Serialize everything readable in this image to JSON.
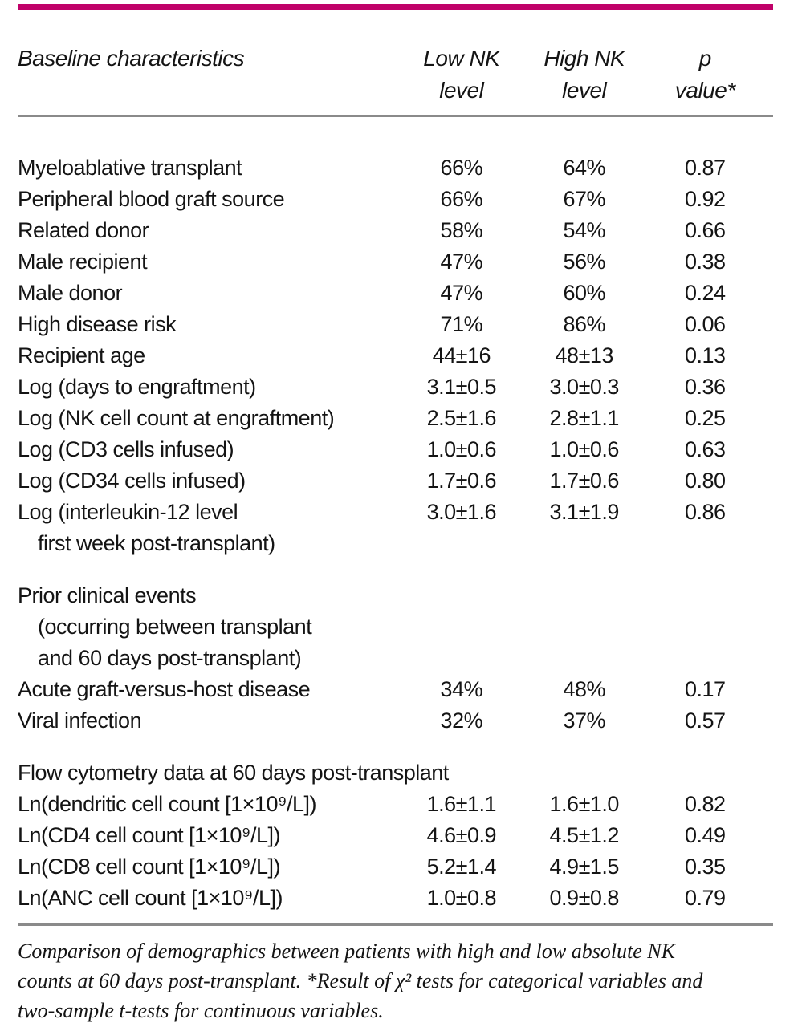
{
  "page": {
    "accent_bar_color": "#C00169",
    "rule_color": "#8a8a8a",
    "text_color": "#141414",
    "background_color": "#ffffff"
  },
  "table": {
    "header": {
      "col1": "Baseline characteristics",
      "col2": [
        "Low NK",
        "level"
      ],
      "col3": [
        "High NK",
        "level"
      ],
      "col4": [
        "p",
        "value*"
      ]
    },
    "rows": [
      {
        "type": "data",
        "label_lines": [
          {
            "text": "Myeloablative transplant",
            "indent": false
          }
        ],
        "values": [
          "66%",
          "64%",
          "0.87"
        ]
      },
      {
        "type": "data",
        "label_lines": [
          {
            "text": "Peripheral blood graft source",
            "indent": false
          }
        ],
        "values": [
          "66%",
          "67%",
          "0.92"
        ]
      },
      {
        "type": "data",
        "label_lines": [
          {
            "text": "Related donor",
            "indent": false
          }
        ],
        "values": [
          "58%",
          "54%",
          "0.66"
        ]
      },
      {
        "type": "data",
        "label_lines": [
          {
            "text": "Male recipient",
            "indent": false
          }
        ],
        "values": [
          "47%",
          "56%",
          "0.38"
        ]
      },
      {
        "type": "data",
        "label_lines": [
          {
            "text": "Male donor",
            "indent": false
          }
        ],
        "values": [
          "47%",
          "60%",
          "0.24"
        ]
      },
      {
        "type": "data",
        "label_lines": [
          {
            "text": "High disease risk",
            "indent": false
          }
        ],
        "values": [
          "71%",
          "86%",
          "0.06"
        ]
      },
      {
        "type": "data",
        "label_lines": [
          {
            "text": "Recipient age",
            "indent": false
          }
        ],
        "values": [
          "44±16",
          "48±13",
          "0.13"
        ]
      },
      {
        "type": "data",
        "label_lines": [
          {
            "text": "Log (days to engraftment)",
            "indent": false
          }
        ],
        "values": [
          "3.1±0.5",
          "3.0±0.3",
          "0.36"
        ]
      },
      {
        "type": "data",
        "label_lines": [
          {
            "text": "Log (NK cell count at engraftment)",
            "indent": false
          }
        ],
        "values": [
          "2.5±1.6",
          "2.8±1.1",
          "0.25"
        ]
      },
      {
        "type": "data",
        "label_lines": [
          {
            "text": "Log (CD3 cells infused)",
            "indent": false
          }
        ],
        "values": [
          "1.0±0.6",
          "1.0±0.6",
          "0.63"
        ]
      },
      {
        "type": "data",
        "label_lines": [
          {
            "text": "Log (CD34 cells infused)",
            "indent": false
          }
        ],
        "values": [
          "1.7±0.6",
          "1.7±0.6",
          "0.80"
        ]
      },
      {
        "type": "data",
        "label_lines": [
          {
            "text": "Log (interleukin-12 level",
            "indent": false
          },
          {
            "text": "first week post-transplant)",
            "indent": true
          }
        ],
        "values": [
          "3.0±1.6",
          "3.1±1.9",
          "0.86"
        ]
      },
      {
        "type": "spacer"
      },
      {
        "type": "section",
        "label_lines": [
          {
            "text": "Prior clinical events",
            "indent": false
          },
          {
            "text": "(occurring between transplant",
            "indent": true
          },
          {
            "text": "and 60 days post-transplant)",
            "indent": true
          }
        ]
      },
      {
        "type": "data",
        "label_lines": [
          {
            "text": "Acute graft-versus-host disease",
            "indent": false
          }
        ],
        "values": [
          "34%",
          "48%",
          "0.17"
        ]
      },
      {
        "type": "data",
        "label_lines": [
          {
            "text": "Viral infection",
            "indent": false
          }
        ],
        "values": [
          "32%",
          "37%",
          "0.57"
        ]
      },
      {
        "type": "spacer"
      },
      {
        "type": "section",
        "label_lines": [
          {
            "text": "Flow cytometry data at 60 days post-transplant",
            "indent": false
          }
        ]
      },
      {
        "type": "data",
        "label_lines": [
          {
            "text": "Ln(dendritic cell count [1×10⁹/L])",
            "indent": false
          }
        ],
        "values": [
          "1.6±1.1",
          "1.6±1.0",
          "0.82"
        ]
      },
      {
        "type": "data",
        "label_lines": [
          {
            "text": "Ln(CD4 cell count [1×10⁹/L])",
            "indent": false
          }
        ],
        "values": [
          "4.6±0.9",
          "4.5±1.2",
          "0.49"
        ]
      },
      {
        "type": "data",
        "label_lines": [
          {
            "text": "Ln(CD8 cell count [1×10⁹/L])",
            "indent": false
          }
        ],
        "values": [
          "5.2±1.4",
          "4.9±1.5",
          "0.35"
        ]
      },
      {
        "type": "data",
        "label_lines": [
          {
            "text": "Ln(ANC cell count [1×10⁹/L])",
            "indent": false
          }
        ],
        "values": [
          "1.0±0.8",
          "0.9±0.8",
          "0.79"
        ]
      }
    ]
  },
  "caption": {
    "lines": [
      "Comparison of demographics between patients with high and low absolute NK",
      "counts at 60 days post-transplant. *Result of χ² tests for categorical variables and",
      "two-sample t-tests for continuous variables."
    ]
  }
}
